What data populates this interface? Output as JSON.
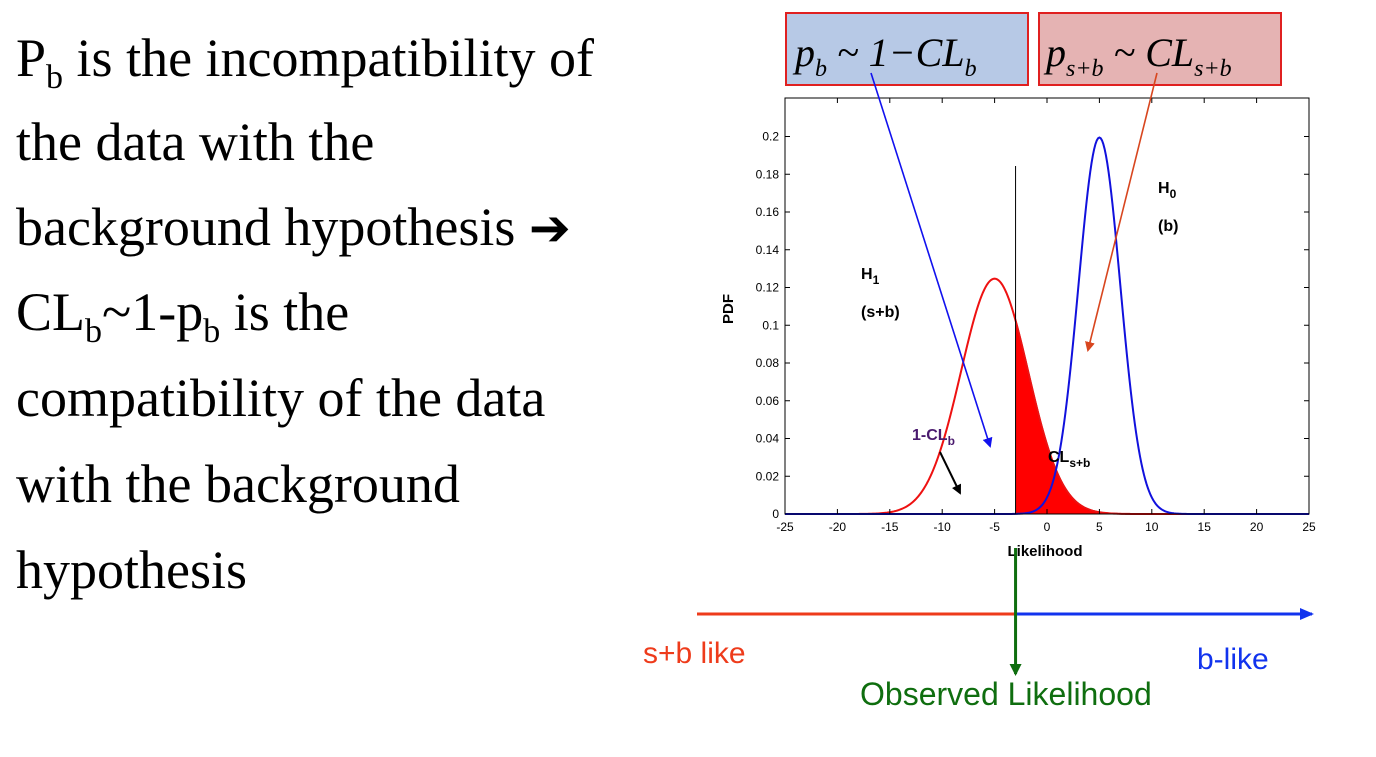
{
  "slide": {
    "lines": [
      [
        {
          "t": "P"
        },
        {
          "t": "b",
          "sub": true
        },
        {
          "t": " is the incompatibility of"
        }
      ],
      [
        {
          "t": "the data with the"
        }
      ],
      [
        {
          "t": "background hypothesis "
        },
        {
          "t": "➔",
          "arrow": true
        }
      ],
      [
        {
          "t": "CL"
        },
        {
          "t": "b",
          "sub": true
        },
        {
          "t": "~1-p"
        },
        {
          "t": "b",
          "sub": true
        },
        {
          "t": " is the"
        }
      ],
      [
        {
          "t": "compatibility of the data"
        }
      ],
      [
        {
          "t": "with the background"
        }
      ],
      [
        {
          "t": "hypothesis"
        }
      ]
    ]
  },
  "formula_boxes": {
    "pb": {
      "p": "p",
      "sub_b": "b",
      "rest": " ~ 1−CL",
      "sub_end": "b",
      "fill": "#b7c9e6",
      "border": "#e02020"
    },
    "psb": {
      "p": "p",
      "sub_sb": "s+b",
      "rest": " ~ CL",
      "sub_end": "s+b",
      "fill": "#e5b3b3",
      "border": "#e02020"
    }
  },
  "chart_data": {
    "type": "line",
    "xlabel": "Likelihood",
    "ylabel": "PDF",
    "xlim": [
      -25,
      25
    ],
    "ylim": [
      0,
      0.22
    ],
    "xticks": [
      -25,
      -20,
      -15,
      -10,
      -5,
      0,
      5,
      10,
      15,
      20,
      25
    ],
    "yticks": [
      0,
      0.02,
      0.04,
      0.06,
      0.08,
      0.1,
      0.12,
      0.14,
      0.16,
      0.18,
      0.2
    ],
    "grid": false,
    "observed_x": -3,
    "series": [
      {
        "curve": "H1",
        "label_main": "H",
        "label_sub": "1",
        "label_hyp": "(s+b)",
        "mean": -5,
        "sigma": 3.2,
        "color": "#ee1111"
      },
      {
        "curve": "H0",
        "label_main": "H",
        "label_sub": "0",
        "label_hyp": "(b)",
        "mean": 5,
        "sigma": 2.0,
        "color": "#1111dd"
      }
    ],
    "regions": [
      {
        "name": "1-CL",
        "sub": "b",
        "under": "H0",
        "side": "left",
        "color": "#0022ff",
        "label_color": "#4a1a6e"
      },
      {
        "name": "CL",
        "sub": "s+b",
        "under": "H1",
        "side": "right",
        "color": "#ff0000",
        "label_color": "#000000"
      }
    ]
  },
  "likelihood_axis": {
    "left_label": "s+b like",
    "right_label": "b-like",
    "observed_label": "Observed Likelihood",
    "left_color": "#ee3b1b",
    "right_color": "#1133ee",
    "observed_color": "#0f6e0f"
  }
}
